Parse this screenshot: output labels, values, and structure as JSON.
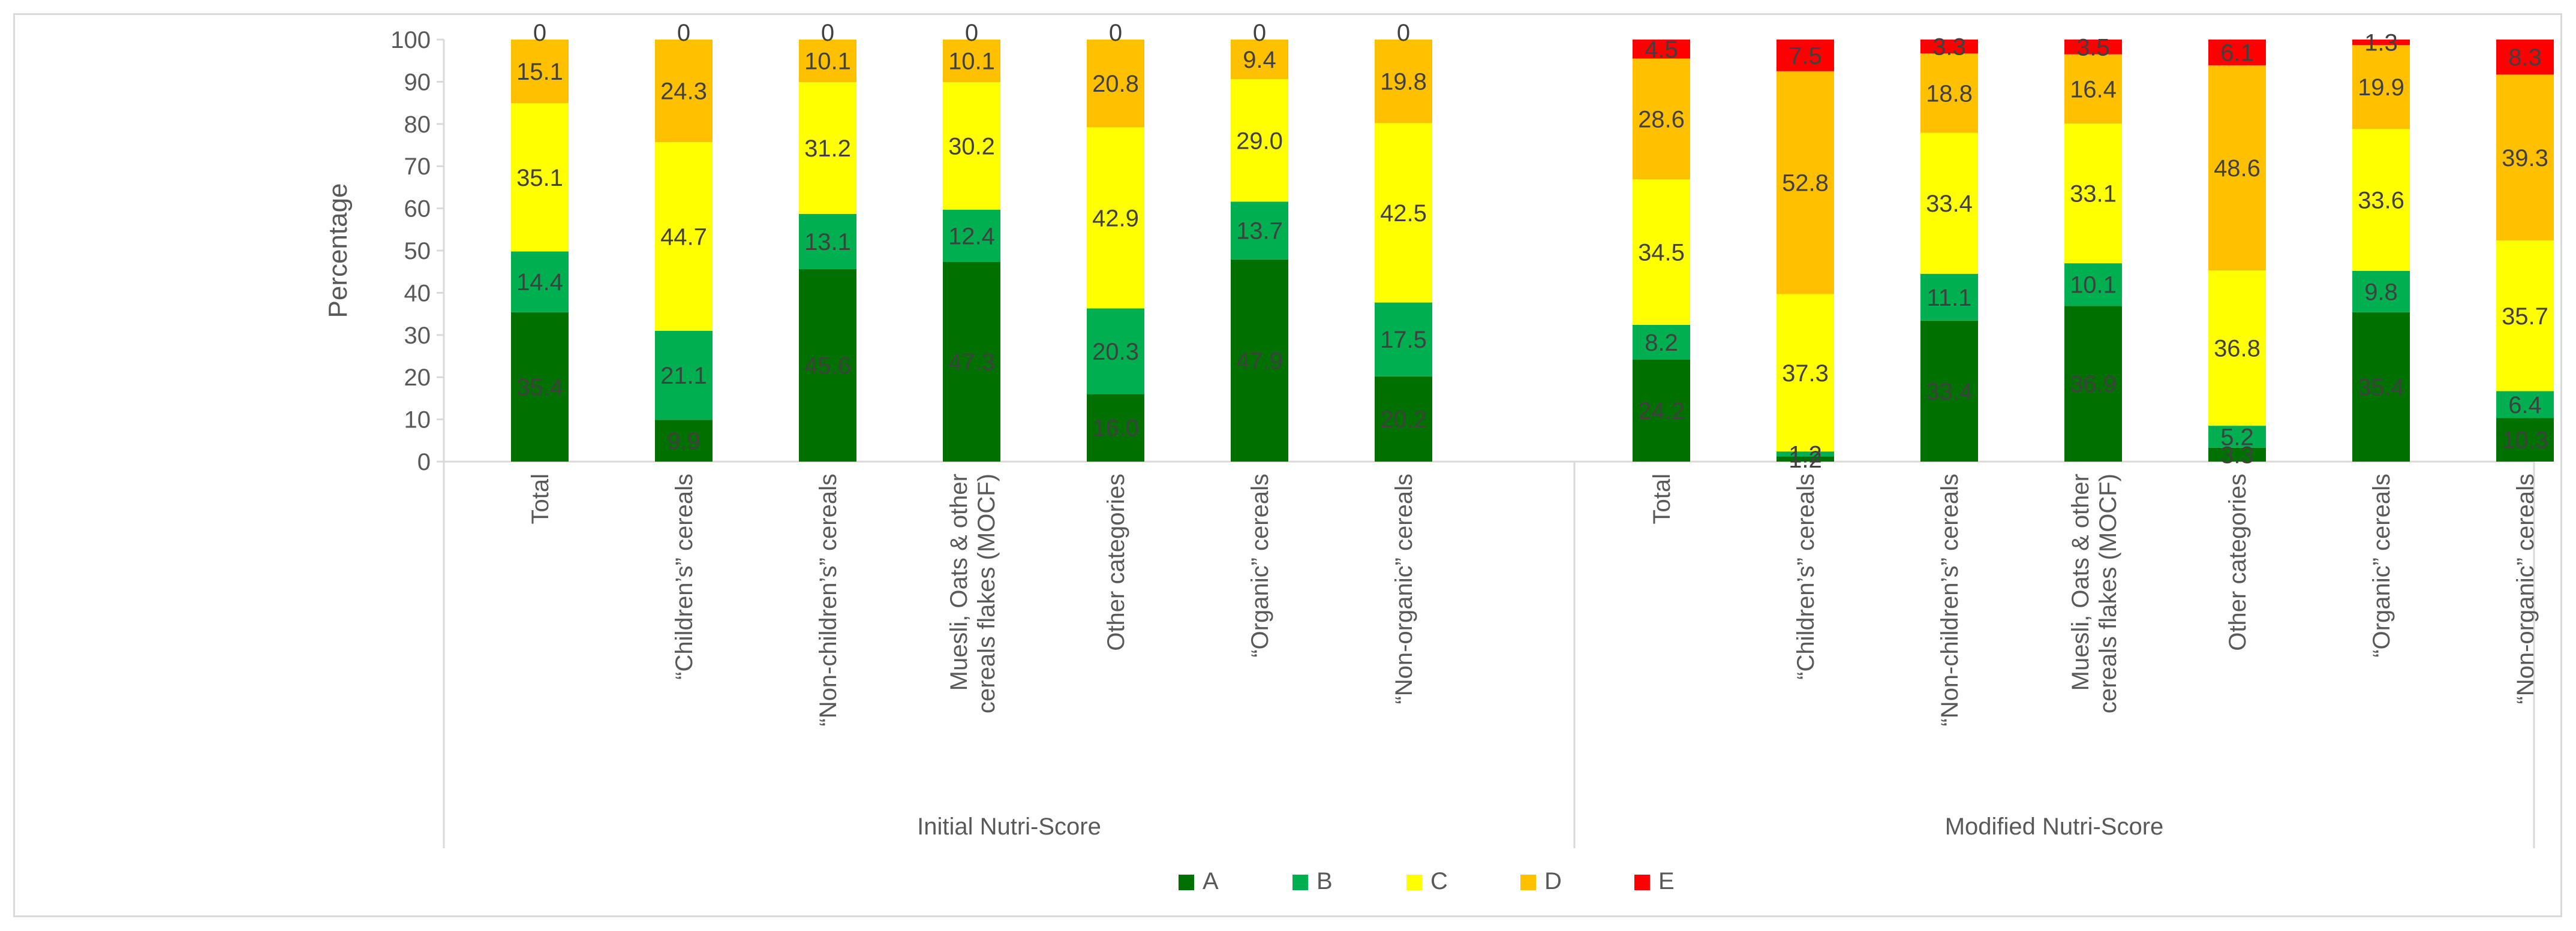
{
  "chart_data": {
    "type": "bar",
    "stacked": true,
    "ylabel": "Percentage",
    "ylim": [
      0,
      100
    ],
    "yticks": [
      0,
      10,
      20,
      30,
      40,
      50,
      60,
      70,
      80,
      90,
      100
    ],
    "legend_position": "bottom-center",
    "grid": false,
    "groups": [
      {
        "name": "Initial Nutri-Score",
        "categories": [
          "Total",
          "“Children’s” cereals",
          "“Non-children’s” cereals",
          "Muesli, Oats & other cereals flakes (MOCF)",
          "Other categories",
          "“Organic” cereals",
          "“Non-organic” cereals"
        ],
        "series": [
          {
            "name": "A",
            "color": "#007000",
            "values": [
              35.4,
              9.9,
              45.6,
              47.3,
              16.0,
              47.9,
              20.2
            ],
            "labels": [
              "35.4",
              "9.9",
              "45.6",
              "47.3",
              "16.0",
              "47.9",
              "20.2"
            ]
          },
          {
            "name": "B",
            "color": "#00b050",
            "values": [
              14.4,
              21.1,
              13.1,
              12.4,
              20.3,
              13.7,
              17.5
            ],
            "labels": [
              "14.4",
              "21.1",
              "13.1",
              "12.4",
              "20.3",
              "13.7",
              "17.5"
            ]
          },
          {
            "name": "C",
            "color": "#ffff00",
            "values": [
              35.1,
              44.7,
              31.2,
              30.2,
              42.9,
              29.0,
              42.5
            ],
            "labels": [
              "35.1",
              "44.7",
              "31.2",
              "30.2",
              "42.9",
              "29.0",
              "42.5"
            ]
          },
          {
            "name": "D",
            "color": "#ffc000",
            "values": [
              15.1,
              24.3,
              10.1,
              10.1,
              20.8,
              9.4,
              19.8
            ],
            "labels": [
              "15.1",
              "24.3",
              "10.1",
              "10.1",
              "20.8",
              "9.4",
              "19.8"
            ]
          },
          {
            "name": "E",
            "color": "#ff0000",
            "values": [
              0,
              0,
              0,
              0,
              0,
              0,
              0
            ],
            "labels": [
              "0",
              "0",
              "0",
              "0",
              "0",
              "0",
              "0"
            ]
          }
        ]
      },
      {
        "name": "Modified Nutri-Score",
        "categories": [
          "Total",
          "“Children’s” cereals",
          "“Non-children’s” cereals",
          "Muesli, Oats & other cereals flakes (MOCF)",
          "Other categories",
          "“Organic” cereals",
          "“Non-organic” cereals"
        ],
        "series": [
          {
            "name": "A",
            "color": "#007000",
            "values": [
              24.2,
              1.2,
              33.4,
              36.9,
              3.3,
              35.4,
              10.3
            ],
            "labels": [
              "24.2",
              "1.2",
              "33.4",
              "36.9",
              "3.3",
              "35.4",
              "10.3"
            ]
          },
          {
            "name": "B",
            "color": "#00b050",
            "values": [
              8.2,
              1.2,
              11.1,
              10.1,
              5.2,
              9.8,
              6.4
            ],
            "labels": [
              "8.2",
              "1.2",
              "11.1",
              "10.1",
              "5.2",
              "9.8",
              "6.4"
            ]
          },
          {
            "name": "C",
            "color": "#ffff00",
            "values": [
              34.5,
              37.3,
              33.4,
              33.1,
              36.8,
              33.6,
              35.7
            ],
            "labels": [
              "34.5",
              "37.3",
              "33.4",
              "33.1",
              "36.8",
              "33.6",
              "35.7"
            ]
          },
          {
            "name": "D",
            "color": "#ffc000",
            "values": [
              28.6,
              52.8,
              18.8,
              16.4,
              48.6,
              19.9,
              39.3
            ],
            "labels": [
              "28.6",
              "52.8",
              "18.8",
              "16.4",
              "48.6",
              "19.9",
              "39.3"
            ]
          },
          {
            "name": "E",
            "color": "#ff0000",
            "values": [
              4.5,
              7.5,
              3.3,
              3.5,
              6.1,
              1.3,
              8.3
            ],
            "labels": [
              "4.5",
              "7.5",
              "3.3",
              "3.5",
              "6.1",
              "1.3",
              "8.3"
            ]
          }
        ]
      }
    ],
    "legend": [
      "A",
      "B",
      "C",
      "D",
      "E"
    ]
  }
}
